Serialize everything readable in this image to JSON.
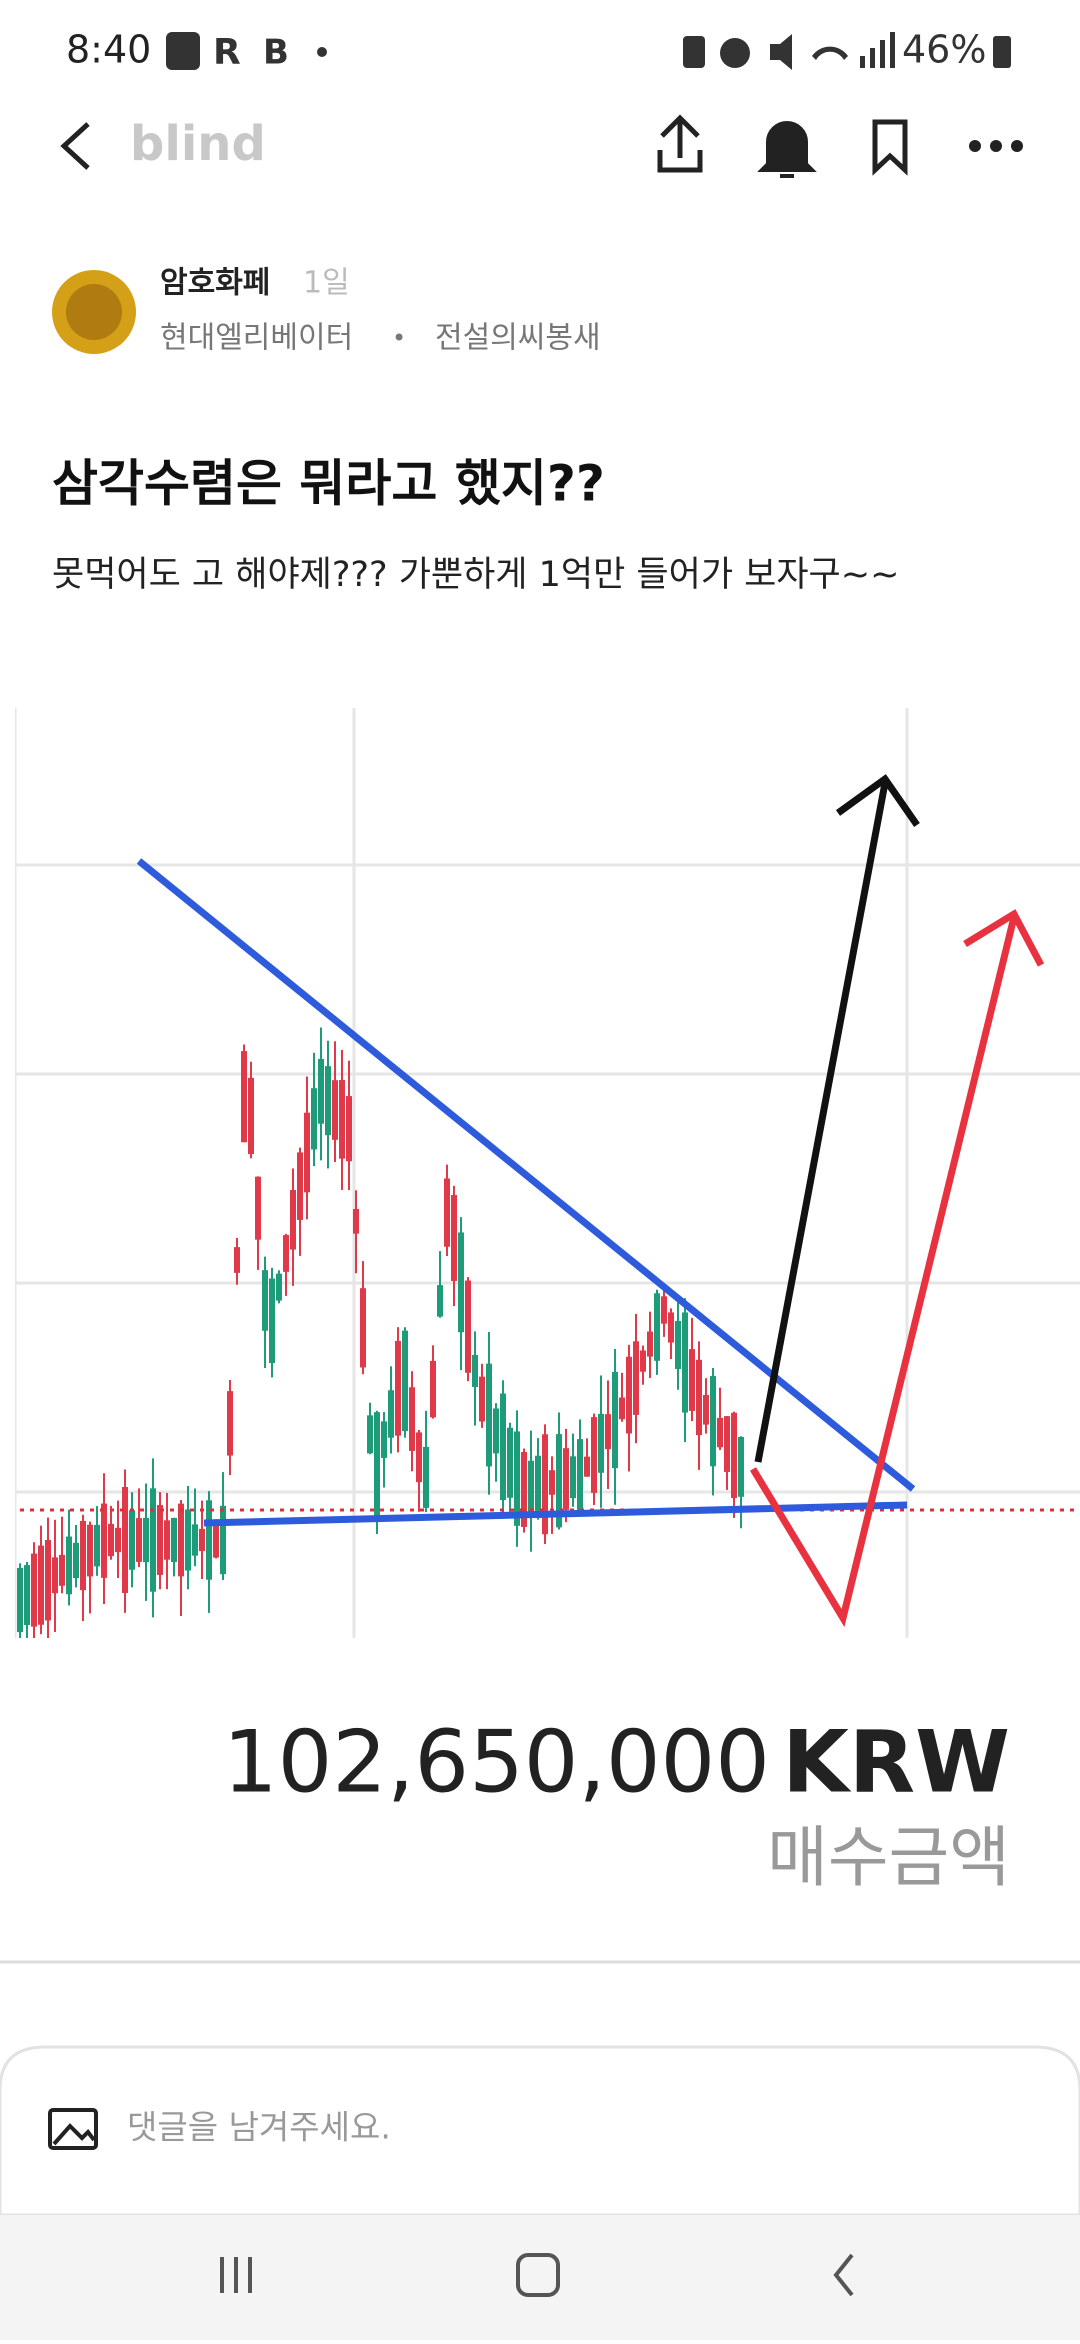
{
  "status_bar": {
    "time": "8:40",
    "app_r": "R",
    "app_b": "B",
    "battery": "46%"
  },
  "header": {
    "logo": "blind"
  },
  "post": {
    "author": "암호화페",
    "age": "1일",
    "company": "현대엘리베이터",
    "separator": "•",
    "nickname": "전설의씨봉새",
    "title": "삼각수렴은 뭐라고 했지??",
    "body": "못먹어도 고 해야제??? 가뿐하게 1억만 들어가 보자구~~",
    "image": {
      "amount": "102,650,000",
      "currency": "KRW",
      "caption": "매수금액"
    }
  },
  "comment_input": {
    "placeholder": "댓글을 남겨주세요."
  }
}
